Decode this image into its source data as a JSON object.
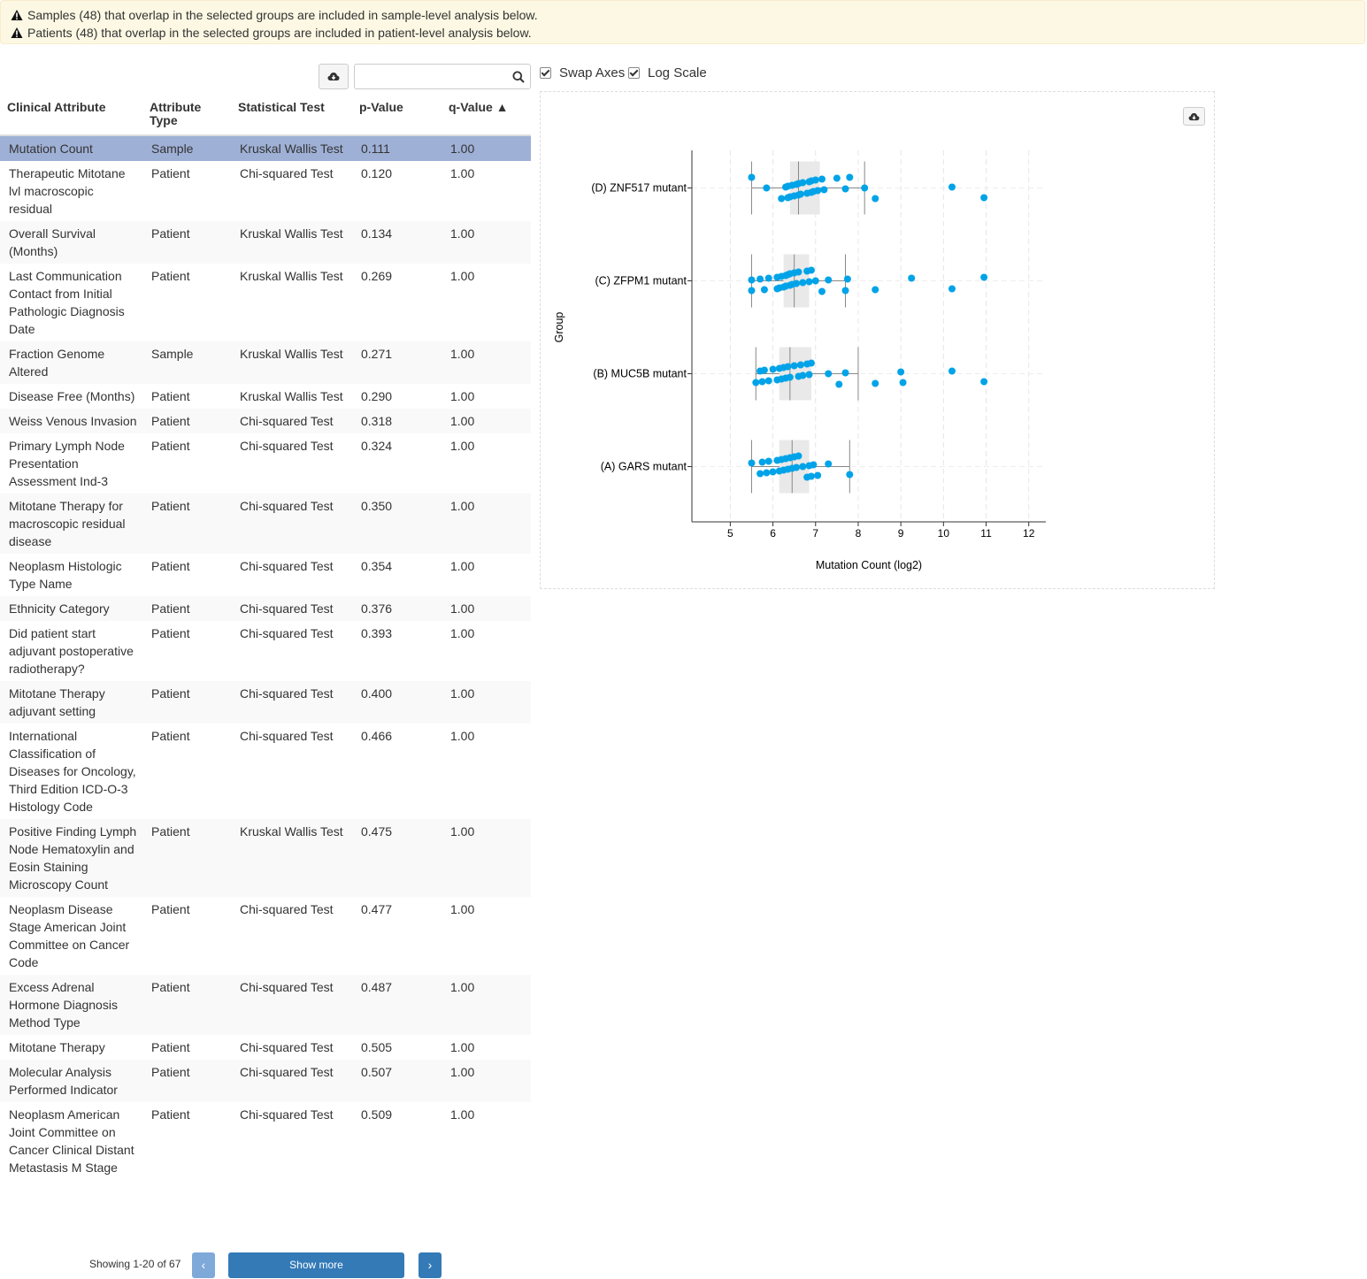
{
  "alerts": [
    "Samples (48) that overlap in the selected groups are included in sample-level analysis below.",
    "Patients (48) that overlap in the selected groups are included in patient-level analysis below."
  ],
  "search": {
    "placeholder": "",
    "value": ""
  },
  "table": {
    "columns": [
      "Clinical Attribute",
      "Attribute Type",
      "Statistical Test",
      "p-Value",
      "q-Value ▲"
    ],
    "rows": [
      {
        "attribute": "Mutation Count",
        "type": "Sample",
        "test": "Kruskal Wallis Test",
        "p": "0.111",
        "q": "1.00",
        "selected": true
      },
      {
        "attribute": "Therapeutic Mitotane lvl macroscopic residual",
        "type": "Patient",
        "test": "Chi-squared Test",
        "p": "0.120",
        "q": "1.00"
      },
      {
        "attribute": "Overall Survival (Months)",
        "type": "Patient",
        "test": "Kruskal Wallis Test",
        "p": "0.134",
        "q": "1.00"
      },
      {
        "attribute": "Last Communication Contact from Initial Pathologic Diagnosis Date",
        "type": "Patient",
        "test": "Kruskal Wallis Test",
        "p": "0.269",
        "q": "1.00"
      },
      {
        "attribute": "Fraction Genome Altered",
        "type": "Sample",
        "test": "Kruskal Wallis Test",
        "p": "0.271",
        "q": "1.00"
      },
      {
        "attribute": "Disease Free (Months)",
        "type": "Patient",
        "test": "Kruskal Wallis Test",
        "p": "0.290",
        "q": "1.00"
      },
      {
        "attribute": "Weiss Venous Invasion",
        "type": "Patient",
        "test": "Chi-squared Test",
        "p": "0.318",
        "q": "1.00"
      },
      {
        "attribute": "Primary Lymph Node Presentation Assessment Ind-3",
        "type": "Patient",
        "test": "Chi-squared Test",
        "p": "0.324",
        "q": "1.00"
      },
      {
        "attribute": "Mitotane Therapy for macroscopic residual disease",
        "type": "Patient",
        "test": "Chi-squared Test",
        "p": "0.350",
        "q": "1.00"
      },
      {
        "attribute": "Neoplasm Histologic Type Name",
        "type": "Patient",
        "test": "Chi-squared Test",
        "p": "0.354",
        "q": "1.00"
      },
      {
        "attribute": "Ethnicity Category",
        "type": "Patient",
        "test": "Chi-squared Test",
        "p": "0.376",
        "q": "1.00"
      },
      {
        "attribute": "Did patient start adjuvant postoperative radiotherapy?",
        "type": "Patient",
        "test": "Chi-squared Test",
        "p": "0.393",
        "q": "1.00"
      },
      {
        "attribute": "Mitotane Therapy adjuvant setting",
        "type": "Patient",
        "test": "Chi-squared Test",
        "p": "0.400",
        "q": "1.00"
      },
      {
        "attribute": "International Classification of Diseases for Oncology, Third Edition ICD-O-3 Histology Code",
        "type": "Patient",
        "test": "Chi-squared Test",
        "p": "0.466",
        "q": "1.00"
      },
      {
        "attribute": "Positive Finding Lymph Node Hematoxylin and Eosin Staining Microscopy Count",
        "type": "Patient",
        "test": "Kruskal Wallis Test",
        "p": "0.475",
        "q": "1.00"
      },
      {
        "attribute": "Neoplasm Disease Stage American Joint Committee on Cancer Code",
        "type": "Patient",
        "test": "Chi-squared Test",
        "p": "0.477",
        "q": "1.00"
      },
      {
        "attribute": "Excess Adrenal Hormone Diagnosis Method Type",
        "type": "Patient",
        "test": "Chi-squared Test",
        "p": "0.487",
        "q": "1.00"
      },
      {
        "attribute": "Mitotane Therapy",
        "type": "Patient",
        "test": "Chi-squared Test",
        "p": "0.505",
        "q": "1.00"
      },
      {
        "attribute": "Molecular Analysis Performed Indicator",
        "type": "Patient",
        "test": "Chi-squared Test",
        "p": "0.507",
        "q": "1.00"
      },
      {
        "attribute": "Neoplasm American Joint Committee on Cancer Clinical Distant Metastasis M Stage",
        "type": "Patient",
        "test": "Chi-squared Test",
        "p": "0.509",
        "q": "1.00"
      }
    ]
  },
  "pager": {
    "showing": "Showing 1-20 of 67",
    "show_more": "Show more",
    "prev": "‹",
    "next": "›"
  },
  "options": {
    "swap_axes": "Swap Axes",
    "swap_axes_checked": true,
    "log_scale": "Log Scale",
    "log_scale_checked": true
  },
  "icons": {
    "alert": "warning-icon",
    "download": "cloud-download-icon",
    "search": "search-icon"
  },
  "colors": {
    "point": "#00a3e8",
    "selected_row": "#9fb0d6",
    "primary": "#337ab7",
    "alert_bg": "#fcf8e3"
  },
  "chart_data": {
    "type": "box-scatter",
    "xlabel": "Mutation Count (log2)",
    "ylabel": "Group",
    "xticks": [
      5,
      6,
      7,
      8,
      9,
      10,
      11,
      12
    ],
    "xlim": [
      4.1,
      12.4
    ],
    "grid": true,
    "groups": [
      {
        "name": "(D) ZNF517 mutant",
        "box": {
          "whisker_low": 5.5,
          "q1": 6.4,
          "median": 6.6,
          "q3": 7.1,
          "whisker_high": 8.15
        },
        "points": [
          5.5,
          5.85,
          6.2,
          6.3,
          6.35,
          6.35,
          6.4,
          6.45,
          6.5,
          6.55,
          6.6,
          6.6,
          6.65,
          6.7,
          6.8,
          6.85,
          6.9,
          6.9,
          6.95,
          7.0,
          7.05,
          7.15,
          7.2,
          7.5,
          7.7,
          7.8,
          8.15,
          8.4,
          10.2,
          10.95
        ]
      },
      {
        "name": "(C) ZFPM1 mutant",
        "box": {
          "whisker_low": 5.5,
          "q1": 6.25,
          "median": 6.5,
          "q3": 6.85,
          "whisker_high": 7.7
        },
        "points": [
          5.5,
          5.5,
          5.7,
          5.8,
          5.9,
          6.1,
          6.1,
          6.15,
          6.2,
          6.25,
          6.3,
          6.3,
          6.35,
          6.4,
          6.4,
          6.45,
          6.5,
          6.55,
          6.6,
          6.7,
          6.8,
          6.85,
          6.9,
          7.0,
          7.15,
          7.3,
          7.7,
          7.75,
          8.4,
          9.25,
          10.2,
          10.95
        ]
      },
      {
        "name": "(B) MUC5B mutant",
        "box": {
          "whisker_low": 5.6,
          "q1": 6.15,
          "median": 6.4,
          "q3": 6.9,
          "whisker_high": 8.0
        },
        "points": [
          5.6,
          5.7,
          5.75,
          5.8,
          5.9,
          6.0,
          6.1,
          6.15,
          6.2,
          6.25,
          6.3,
          6.35,
          6.4,
          6.5,
          6.6,
          6.65,
          6.7,
          6.8,
          6.85,
          6.9,
          7.3,
          7.55,
          7.7,
          8.4,
          9.0,
          9.05,
          10.2,
          10.95
        ]
      },
      {
        "name": "(A) GARS mutant",
        "box": {
          "whisker_low": 5.5,
          "q1": 6.15,
          "median": 6.45,
          "q3": 6.85,
          "whisker_high": 7.8
        },
        "points": [
          5.5,
          5.7,
          5.75,
          5.85,
          5.9,
          6.0,
          6.1,
          6.15,
          6.2,
          6.25,
          6.3,
          6.35,
          6.4,
          6.45,
          6.5,
          6.55,
          6.6,
          6.7,
          6.8,
          6.85,
          6.9,
          6.95,
          7.05,
          7.3,
          7.8
        ]
      }
    ]
  }
}
